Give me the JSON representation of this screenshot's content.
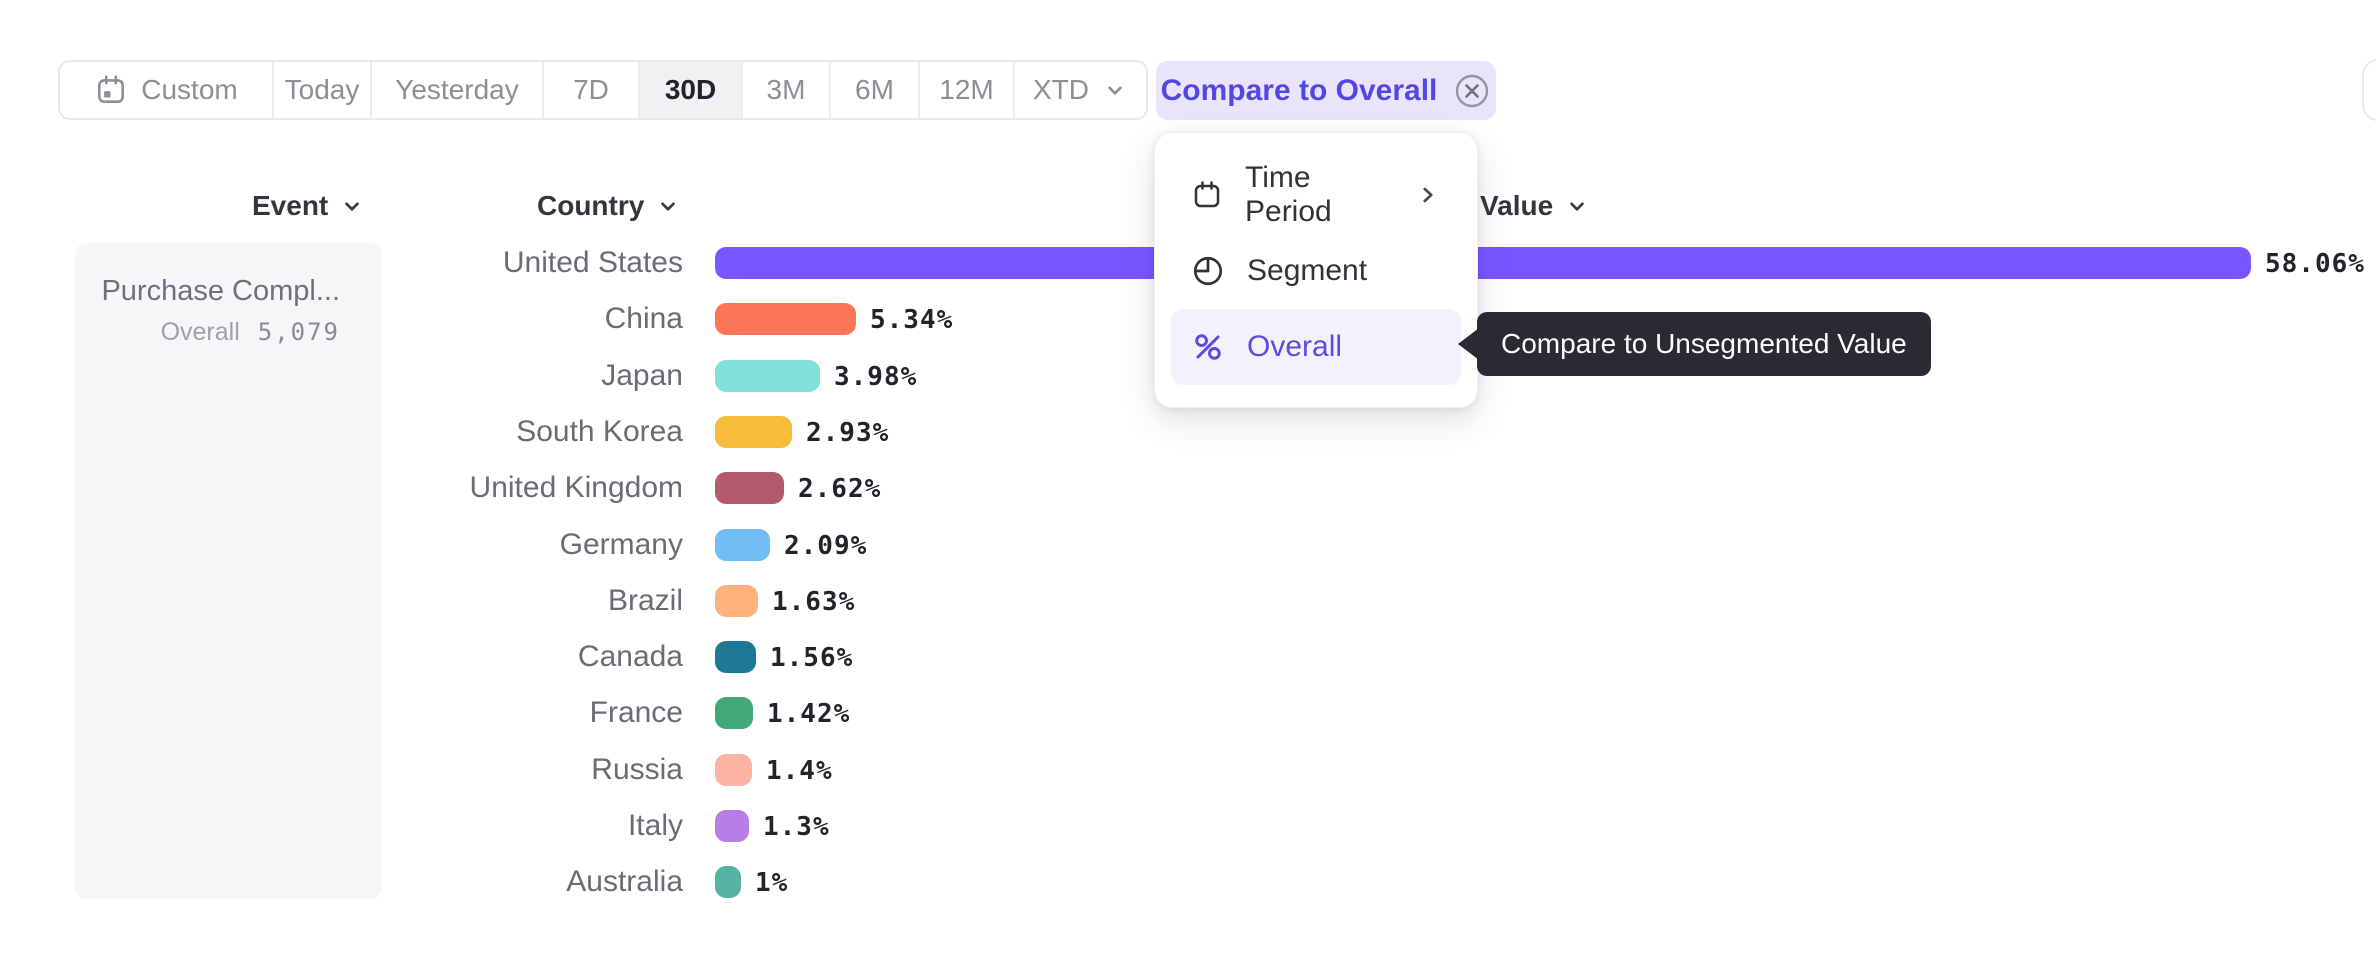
{
  "toolbar": {
    "ranges": [
      {
        "label": "Custom",
        "icon": "calendar-icon",
        "selected": false
      },
      {
        "label": "Today",
        "selected": false
      },
      {
        "label": "Yesterday",
        "selected": false
      },
      {
        "label": "7D",
        "selected": false
      },
      {
        "label": "30D",
        "selected": true
      },
      {
        "label": "3M",
        "selected": false
      },
      {
        "label": "6M",
        "selected": false
      },
      {
        "label": "12M",
        "selected": false
      },
      {
        "label": "XTD",
        "icon": "chevron-down-icon",
        "selected": false
      }
    ],
    "compare_button": {
      "label": "Compare to Overall",
      "icon": "circle-x-icon"
    }
  },
  "menu": {
    "items": [
      {
        "label": "Time Period",
        "icon": "calendar-icon",
        "has_submenu": true,
        "active": false
      },
      {
        "label": "Segment",
        "icon": "segment-icon",
        "active": false
      },
      {
        "label": "Overall",
        "icon": "percent-icon",
        "active": true
      }
    ]
  },
  "tooltip": {
    "text": "Compare to Unsegmented Value"
  },
  "columns": {
    "event": "Event",
    "country": "Country",
    "value": "Value"
  },
  "event_card": {
    "title": "Purchase Compl...",
    "overall_label": "Overall",
    "overall_value": "5,079"
  },
  "chart_data": {
    "type": "bar",
    "orientation": "horizontal",
    "categories": [
      "United States",
      "China",
      "Japan",
      "South Korea",
      "United Kingdom",
      "Germany",
      "Brazil",
      "Canada",
      "France",
      "Russia",
      "Italy",
      "Australia"
    ],
    "values": [
      58.06,
      5.34,
      3.98,
      2.93,
      2.62,
      2.09,
      1.63,
      1.56,
      1.42,
      1.4,
      1.3,
      1
    ],
    "value_labels": [
      "58.06%",
      "5.34%",
      "3.98%",
      "2.93%",
      "2.62%",
      "2.09%",
      "1.63%",
      "1.56%",
      "1.42%",
      "1.4%",
      "1.3%",
      "1%"
    ],
    "bar_colors": [
      "#7856FF",
      "#FF7557",
      "#80E1D9",
      "#F8BC3B",
      "#B2596E",
      "#72BEF4",
      "#FFB27A",
      "#1E7898",
      "#41A878",
      "#FCB3A4",
      "#B87EE8",
      "#55B3A2"
    ],
    "xlabel": "",
    "ylabel": "",
    "xlim": [
      0,
      60
    ],
    "grid": false,
    "legend": false,
    "value_format": "percent"
  },
  "colors": {
    "accent": "#7856FF",
    "compare_bg": "#E9E4FB",
    "compare_text": "#5347E2",
    "menu_active_bg": "#F4F1FD",
    "menu_active_text": "#5B4EDC",
    "tooltip_bg": "#2B2A33",
    "selected_range_bg": "#F1F1F3",
    "toolbar_text": "#8E8E96"
  }
}
